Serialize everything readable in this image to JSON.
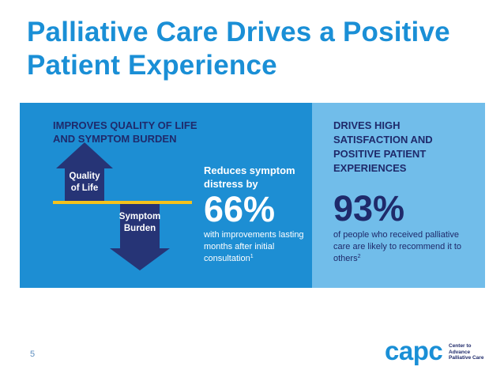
{
  "slide": {
    "title": "Palliative Care Drives a Positive Patient Experience",
    "page_number": "5"
  },
  "left_panel": {
    "heading": "IMPROVES QUALITY OF LIFE\nAND SYMPTOM BURDEN",
    "up_arrow_label": "Quality\nof Life",
    "down_arrow_label": "Symptom\nBurden",
    "reduces_text": "Reduces symptom\ndistress by",
    "big_stat": "66%",
    "note": "with improvements lasting months after initial consultation",
    "note_footnote": "1"
  },
  "right_panel": {
    "heading": "DRIVES HIGH\nSATISFACTION AND\nPOSITIVE PATIENT\nEXPERIENCES",
    "big_stat": "93%",
    "note": "of people who received palliative care are likely to recommend it to others",
    "note_footnote": "2"
  },
  "logo": {
    "wordmark": "capc",
    "text": "Center to\nAdvance\nPalliative Care"
  },
  "colors": {
    "title_blue": "#1a8fd6",
    "panel_left": "#1d8ed3",
    "panel_right": "#71bdea",
    "navy": "#1f2a6b",
    "divider_yellow": "#f5c21b"
  }
}
